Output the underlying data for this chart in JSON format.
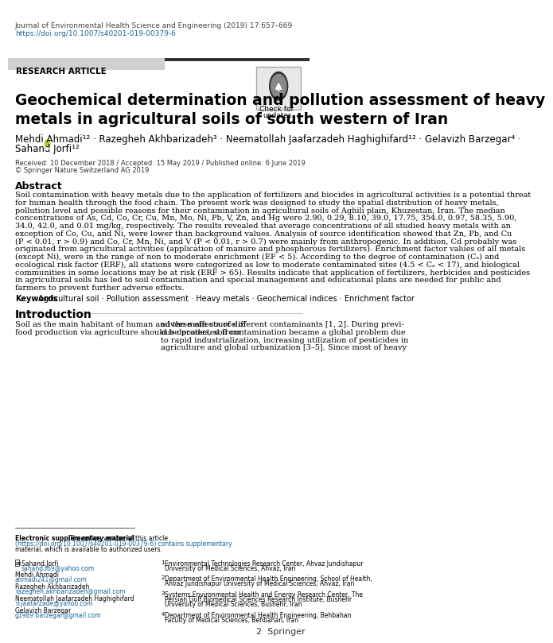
{
  "journal_line1": "Journal of Environmental Health Science and Engineering (2019) 17:657–669",
  "journal_line2": "https://doi.org/10.1007/s40201-019-00379-6",
  "research_article_label": "RESEARCH ARTICLE",
  "title": "Geochemical determination and pollution assessment of heavy\nmetals in agricultural soils of south western of Iran",
  "authors": "Mehdi Ahmadi¹² · Razegheh Akhbarizadeh³ · Neematollah Jaafarzadeh Haghighifard¹² · Gelavizh Barzegar⁴ ·\nSahand Jorfi¹²",
  "dates": "Received: 10 December 2018 / Accepted: 15 May 2019 / Published online: 6 June 2019",
  "copyright": "© Springer Nature Switzerland AG 2019",
  "abstract_title": "Abstract",
  "abstract_text": "Soil contamination with heavy metals due to the application of fertilizers and biocides in agricultural activities is a potential threat for human health through the food chain. The present work was designed to study the spatial distribution of heavy metals, pollution level and possible reasons for their contamination in agricultural soils of Aghili plain, Khuzestan, Iran. The median concentrations of As, Cd, Co, Cr, Cu, Mn, Mo, Ni, Pb, V, Zn, and Hg were 2.90, 0.29, 8.10, 39.0, 17.75, 354.0, 0.97, 58.35, 5.90, 34.0, 42.0, and 0.01 mg/kg, respectively. The results revealed that average concentrations of all studied heavy metals with an exception of Co, Cu, and Ni, were lower than background values. Analysis of source identification showed that Zn, Pb, and Cu (P < 0.01, r > 0.9) and Co, Cr, Mn, Ni, and V (P < 0.01, r > 0.7) were mainly from anthropogenic. In addition, Cd probably was originated from agricultural activities (application of manure and phosphorous fertilizers). Enrichment factor values of all metals (except Ni), were in the range of non to moderate enrichment (EF < 5). According to the degree of contamination (Cₐ) and ecological risk factor (ERF), all stations were categorized as low to moderate contaminated sites (4.5 < Cₐ < 17), and biological communities in some locations may be at risk (ERF > 65). Results indicate that application of fertilizers, herbicides and pesticides in agricultural soils has led to soil contamination and special management and educational plans are needed for public and farmers to prevent further adverse effects.",
  "keywords_label": "Keywords",
  "keywords_text": "Agricultural soil · Pollution assessment · Heavy metals · Geochemical indices · Enrichment factor",
  "intro_title": "Introduction",
  "intro_text": "Soil as the main habitant of human and the main source of food production via agriculture should be protected from",
  "intro_text_right": "adverse effects of different contaminants [1, 2]. During previous decades, soil contamination became a global problem due to rapid industrialization, increasing utilization of pesticides in agriculture and global urbanization [3–5]. Since most of heavy",
  "electronic_supp": "Electronic supplementary material The online version of this article (https://doi.org/10.1007/s40201-019-00379-6) contains supplementary material, which is available to authorized users.",
  "contact_name1": "Sahand Jorfi",
  "contact_email1": "sahand369@yahoo.com",
  "contact_name2": "Mehdi Ahmadi",
  "contact_email2": "ahmadi241@gmail.com",
  "contact_name3": "Razegheh Akhbarizadeh",
  "contact_email3": "razegheh.akhbarizadeh@gmail.com",
  "contact_name4": "Neematollah Jaafarzadeh Haghighifard",
  "contact_email4": "n.jaafarzade@yahoo.com",
  "contact_name5": "Gelavizh Barzegar",
  "contact_email5": "g1989.barzegar@gmail.com",
  "affil1": "1  Environmental Technologies Research Center, Ahvaz Jundishapur University of Medical Sciences, Ahvaz, Iran",
  "affil2": "2  Department of Environmental Health Engineering, School of Health, Ahvaz Jundishapur University of Medical Sciences, Ahvaz, Iran",
  "affil3": "3  Systems Environmental Health and Energy Research Center, The Persian Gulf Biomedical Sciences Research Institute, Bushehr University of Medical Sciences, Bushehr, Iran",
  "affil4": "4  Department of Environmental Health Engineering, Behbahan Faculty of Medical Sciences, Behbahan, Iran",
  "springer_logo": "2  Springer",
  "bg_color": "#ffffff",
  "header_bar_color": "#c8c8c8",
  "research_article_bg": "#d0d0d0",
  "title_fontsize": 13.5,
  "body_fontsize": 7.0,
  "small_fontsize": 6.0,
  "author_fontsize": 8.5,
  "journal_fontsize": 6.5
}
